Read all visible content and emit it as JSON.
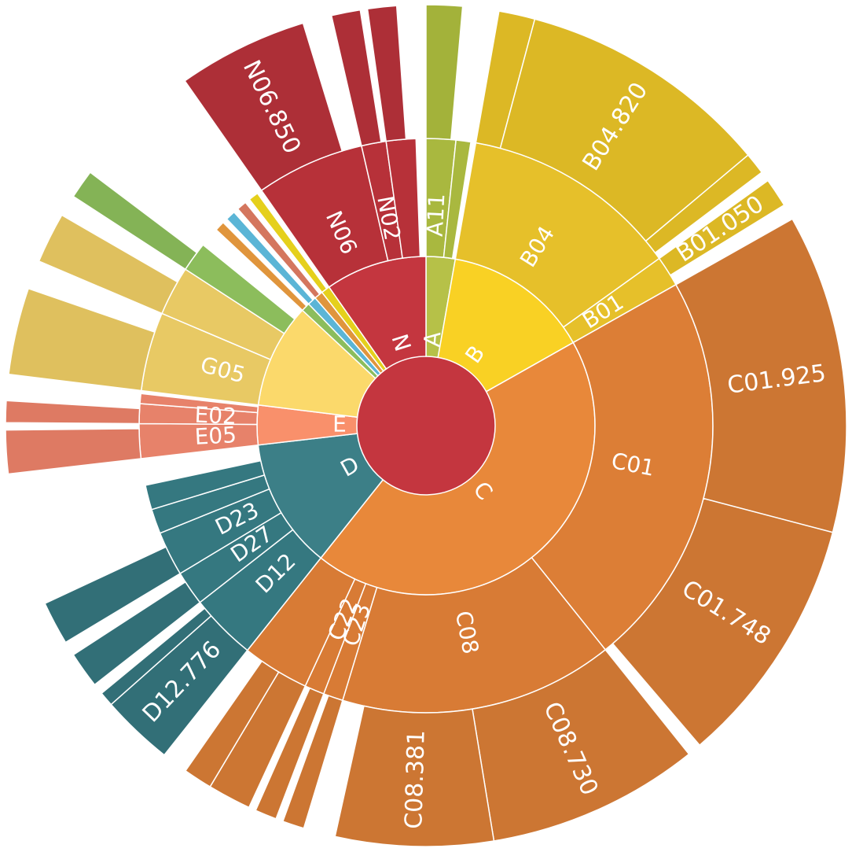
{
  "chart_data": {
    "type": "sunburst",
    "root_color": "#c4363f",
    "children": [
      {
        "name": "A",
        "color": "#b6c148",
        "value": 10,
        "children": [
          {
            "name": "A11",
            "color": "#a9b83f",
            "value": 6,
            "children": [
              {
                "name": null,
                "color": "#a3b23a",
                "value": 5
              }
            ]
          },
          {
            "name": null,
            "color": "#a9b83f",
            "value": 3
          }
        ]
      },
      {
        "name": "B",
        "color": "#f9d124",
        "value": 50.6,
        "children": [
          {
            "name": "B04",
            "color": "#e6c02a",
            "value": 44.4,
            "children": [
              {
                "name": null,
                "color": "#dcb825",
                "value": 5
              },
              {
                "name": "B04.820",
                "color": "#dcb825",
                "value": 35
              },
              {
                "name": null,
                "color": "#dcb825",
                "value": 3
              }
            ]
          },
          {
            "name": "B01",
            "color": "#e6c02a",
            "value": 6.2,
            "children": [
              {
                "name": "B01.050",
                "color": "#dcb825",
                "value": 4
              }
            ]
          }
        ]
      },
      {
        "name": "C",
        "color": "#e8883a",
        "value": 157.9,
        "children": [
          {
            "name": "C01",
            "color": "#dc7e36",
            "value": 80.7,
            "children": [
              {
                "name": "C01.925",
                "color": "#cc7633",
                "value": 44.1
              },
              {
                "name": "C01.748",
                "color": "#cc7633",
                "value": 34.7
              }
            ]
          },
          {
            "name": "C08",
            "color": "#d87b35",
            "value": 55.6,
            "children": [
              {
                "name": "C08.730",
                "color": "#cc7633",
                "value": 29.4
              },
              {
                "name": "C08.381",
                "color": "#cc7633",
                "value": 21.8
              }
            ]
          },
          {
            "name": "C23",
            "color": "#d87b35",
            "value": 4,
            "children": [
              {
                "name": null,
                "color": "#cc7633",
                "value": 3
              }
            ]
          },
          {
            "name": "C22",
            "color": "#d87b35",
            "value": 4,
            "children": [
              {
                "name": null,
                "color": "#cc7633",
                "value": 3
              }
            ]
          },
          {
            "name": null,
            "color": "#d87b35",
            "value": 13.6,
            "children": [
              {
                "name": null,
                "color": "#cc7633",
                "value": 6
              },
              {
                "name": null,
                "color": "#cc7633",
                "value": 4
              }
            ]
          }
        ]
      },
      {
        "name": "D",
        "color": "#3c7f87",
        "value": 44.9,
        "children": [
          {
            "name": "D12",
            "color": "#357880",
            "value": 13.5,
            "children": [
              {
                "name": "D12.776",
                "color": "#326f77",
                "value": 10
              },
              {
                "name": null,
                "color": "#326f77",
                "value": 2
              }
            ]
          },
          {
            "name": "D27",
            "color": "#357880",
            "value": 7,
            "children": [
              {
                "name": null,
                "color": "#326f77",
                "value": 5
              }
            ]
          },
          {
            "name": "D23",
            "color": "#357880",
            "value": 9,
            "children": [
              {
                "name": null,
                "color": "#326f77",
                "value": 6
              }
            ]
          },
          {
            "name": null,
            "color": "#357880",
            "value": 5
          },
          {
            "name": null,
            "color": "#357880",
            "value": 5
          }
        ]
      },
      {
        "name": "E",
        "color": "#f9906b",
        "value": 13.6,
        "children": [
          {
            "name": "E05",
            "color": "#e7826a",
            "value": 7,
            "children": [
              {
                "name": null,
                "color": "#de7a63",
                "value": 6
              }
            ]
          },
          {
            "name": "E02",
            "color": "#e7826a",
            "value": 4,
            "children": [
              {
                "name": null,
                "color": "#de7a63",
                "value": 3
              }
            ]
          },
          {
            "name": null,
            "color": "#e7826a",
            "value": 2
          }
        ]
      },
      {
        "name": null,
        "color": "#fbd96b",
        "value": 36,
        "children": [
          {
            "name": "G05",
            "color": "#e8c964",
            "value": 16,
            "children": [
              {
                "name": null,
                "color": "#dfc05e",
                "value": 12
              }
            ]
          },
          {
            "name": null,
            "color": "#e8c964",
            "value": 10,
            "children": [
              {
                "name": null,
                "color": "#dfc05e",
                "value": 7
              }
            ]
          },
          {
            "name": null,
            "color": "#8cbd5c",
            "value": 6,
            "children": [
              {
                "name": null,
                "color": "#84b356",
                "value": 4
              }
            ]
          }
        ]
      },
      {
        "name": null,
        "color": "#8cbd5c",
        "value": 3,
        "children": [
          {
            "name": null,
            "color": "#e0953c",
            "value": 2
          }
        ]
      },
      {
        "name": null,
        "color": "#5bb5d6",
        "value": 3,
        "children": [
          {
            "name": null,
            "color": "#5bb5d6",
            "value": 2
          }
        ]
      },
      {
        "name": null,
        "color": "#e0953c",
        "value": 3,
        "children": [
          {
            "name": null,
            "color": "#d4765e",
            "value": 2
          }
        ]
      },
      {
        "name": null,
        "color": "#e5d01c",
        "value": 3,
        "children": [
          {
            "name": null,
            "color": "#e5d01c",
            "value": 2
          }
        ]
      },
      {
        "name": "N",
        "color": "#c4363f",
        "value": 35,
        "children": [
          {
            "name": "N06",
            "color": "#b73139",
            "value": 22,
            "children": [
              {
                "name": "N06.850",
                "color": "#ad2f37",
                "value": 18
              }
            ]
          },
          {
            "name": "N02",
            "color": "#b73139",
            "value": 5,
            "children": [
              {
                "name": null,
                "color": "#ad2f37",
                "value": 4
              }
            ]
          },
          {
            "name": null,
            "color": "#b73139",
            "value": 6,
            "children": [
              {
                "name": null,
                "color": "#ad2f37",
                "value": 4
              }
            ]
          }
        ]
      }
    ]
  }
}
